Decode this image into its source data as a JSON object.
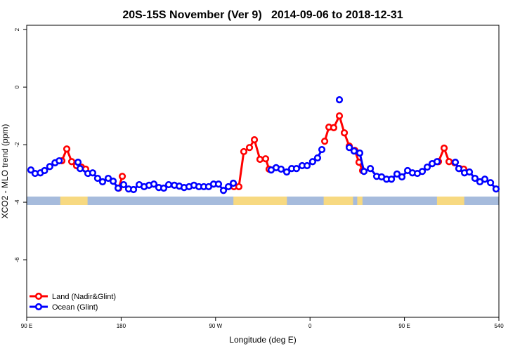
{
  "chart_data": {
    "type": "line",
    "title": "20S-15S November (Ver 9)   2014-09-06 to 2018-12-31",
    "x_label": "Longitude (deg E)",
    "y_label": "XCO2 - MLO trend (ppm)",
    "xlim": [
      90,
      540
    ],
    "ylim": [
      -8,
      2.15
    ],
    "xticks": [
      {
        "value": 90,
        "label": "90 E"
      },
      180,
      {
        "value": 270,
        "label": "90 W"
      },
      {
        "value": 360,
        "label": "0"
      },
      {
        "value": 450,
        "label": "90 E"
      },
      540
    ],
    "yticks": [
      2,
      0,
      -2,
      -4,
      -6
    ],
    "legend": "bottom-left",
    "land_color": "#f7d981",
    "ocean_color": "#a6bbdc",
    "land_spans": [
      [
        122,
        148
      ],
      [
        287,
        338
      ],
      [
        373,
        401
      ],
      [
        405,
        410
      ],
      [
        481,
        507
      ]
    ],
    "series": [
      {
        "name": "Land (Nadir&Glint)",
        "color": "#ff0000",
        "x": [
          123.5,
          128.2,
          132.9,
          137.5,
          142.2,
          146.2,
          160,
          177.7,
          181.1,
          250,
          287.5,
          292.2,
          296.9,
          302.3,
          307,
          312.3,
          317.7,
          321,
          350,
          374,
          378,
          382.6,
          388,
          392.7,
          397.4,
          402.7,
          406.7,
          410.1,
          450,
          482.4,
          487.8,
          492.5,
          497.8,
          502.5,
          506.5
        ],
        "values": [
          -2.56,
          -2.15,
          -2.59,
          -2.73,
          -2.78,
          -2.85,
          null,
          -3.51,
          -3.1,
          null,
          -3.46,
          -3.46,
          -2.24,
          -2.1,
          -1.83,
          -2.51,
          -2.49,
          -2.85,
          null,
          -1.88,
          -1.39,
          -1.41,
          -1.0,
          -1.59,
          -2.05,
          -2.2,
          -2.61,
          -2.9,
          null,
          -2.59,
          -2.12,
          -2.59,
          -2.63,
          -2.83,
          -2.85
        ]
      },
      {
        "name": "Ocean (Glint)",
        "color": "#0000ff",
        "x": [
          94,
          98,
          103,
          107,
          112,
          117,
          121,
          130,
          138.9,
          140.9,
          148.3,
          152.9,
          157.6,
          162.3,
          167.7,
          172.4,
          177.1,
          182.4,
          187.1,
          191.8,
          197.2,
          201.9,
          206.6,
          211.2,
          215.9,
          220.6,
          225.3,
          230.7,
          235.4,
          240,
          244.7,
          249.4,
          254.1,
          258.8,
          263.4,
          268.1,
          272.8,
          277.5,
          282.2,
          286.9,
          300,
          323,
          327.7,
          332.4,
          337.8,
          342.5,
          347.1,
          352.5,
          357.2,
          362.5,
          367.2,
          371.3,
          380,
          388,
          393,
          397.4,
          402,
          407.4,
          411.4,
          417.5,
          423.5,
          428.2,
          432.9,
          437.6,
          442.9,
          447.6,
          453,
          457.6,
          462.3,
          467,
          471.7,
          476.4,
          481.1,
          490,
          498.5,
          501.8,
          507.2,
          511.9,
          517.2,
          521.9,
          526.6,
          532,
          537.3
        ],
        "values": [
          -2.88,
          -3.0,
          -2.98,
          -2.9,
          -2.76,
          -2.63,
          -2.56,
          null,
          -2.61,
          -2.83,
          -3.0,
          -2.98,
          -3.17,
          -3.29,
          -3.17,
          -3.27,
          -3.51,
          -3.39,
          -3.54,
          -3.56,
          -3.39,
          -3.46,
          -3.41,
          -3.37,
          -3.49,
          -3.51,
          -3.39,
          -3.41,
          -3.44,
          -3.49,
          -3.46,
          -3.41,
          -3.46,
          -3.46,
          -3.46,
          -3.37,
          -3.37,
          -3.59,
          -3.46,
          -3.34,
          null,
          -2.88,
          -2.8,
          -2.85,
          -2.95,
          -2.83,
          -2.83,
          -2.73,
          -2.73,
          -2.59,
          -2.46,
          -2.17,
          null,
          -0.44,
          null,
          -2.1,
          -2.22,
          -2.29,
          -2.93,
          -2.83,
          -3.1,
          -3.12,
          -3.2,
          -3.2,
          -3.02,
          -3.12,
          -2.9,
          -2.98,
          -3.0,
          -2.93,
          -2.78,
          -2.66,
          -2.59,
          null,
          -2.61,
          -2.83,
          -2.98,
          -2.95,
          -3.17,
          -3.29,
          -3.2,
          -3.32,
          -3.54
        ]
      }
    ]
  }
}
